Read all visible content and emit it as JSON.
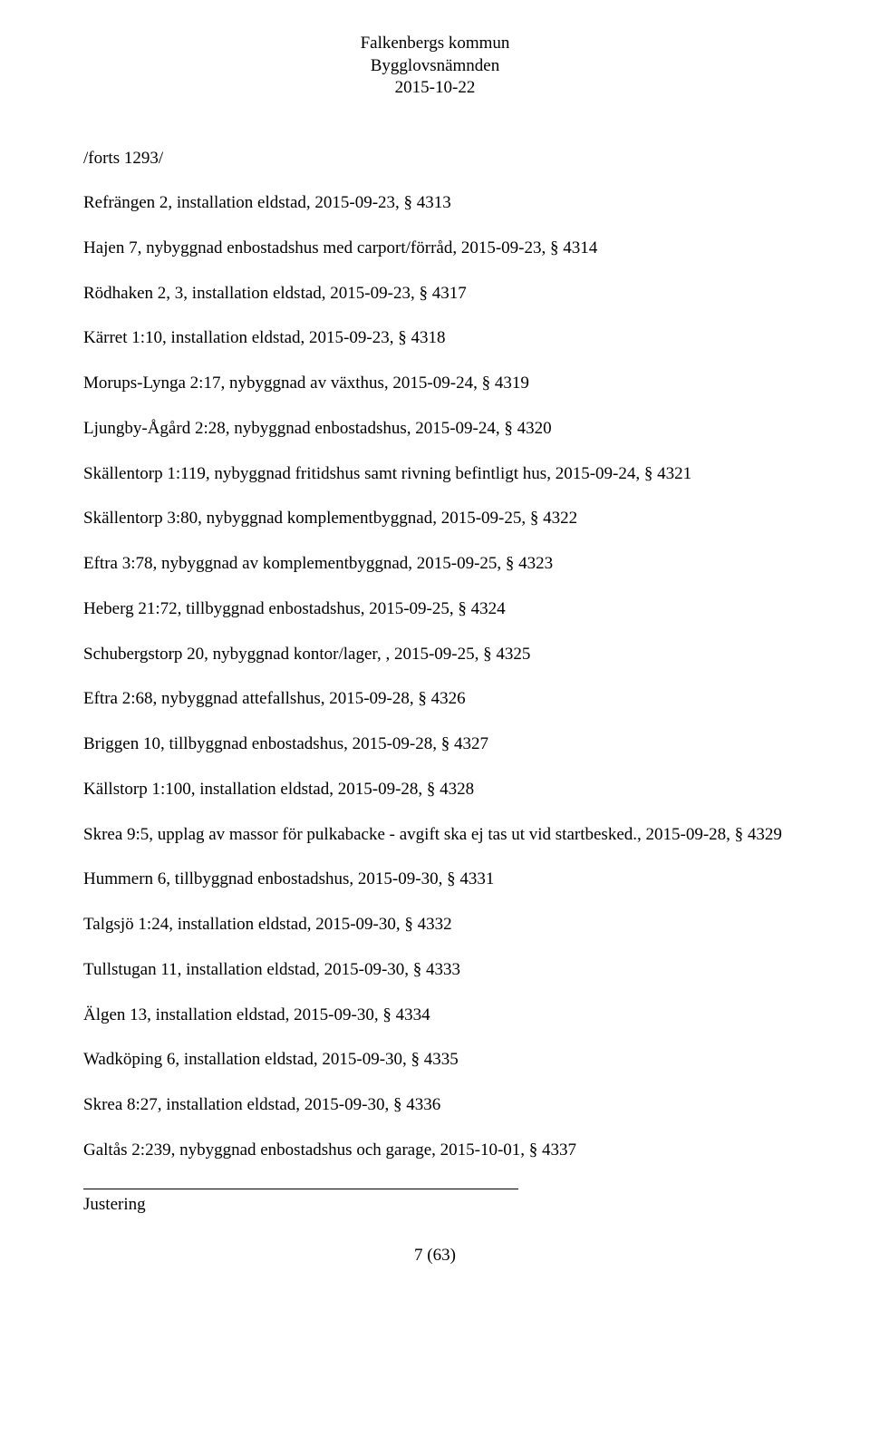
{
  "header": {
    "line1": "Falkenbergs kommun",
    "line2": "Bygglovsnämnden",
    "line3": "2015-10-22"
  },
  "section_head": "/forts 1293/",
  "entries": [
    "Refrängen 2, installation eldstad, 2015-09-23, § 4313",
    "Hajen 7, nybyggnad enbostadshus med carport/förråd, 2015-09-23, § 4314",
    "Rödhaken 2, 3, installation eldstad, 2015-09-23, § 4317",
    "Kärret 1:10, installation eldstad, 2015-09-23, § 4318",
    "Morups-Lynga 2:17, nybyggnad av växthus, 2015-09-24, § 4319",
    "Ljungby-Ågård 2:28, nybyggnad enbostadshus, 2015-09-24, § 4320",
    "Skällentorp 1:119, nybyggnad fritidshus samt rivning befintligt hus, 2015-09-24, § 4321",
    "Skällentorp 3:80, nybyggnad komplementbyggnad, 2015-09-25, § 4322",
    "Eftra 3:78, nybyggnad av komplementbyggnad, 2015-09-25, § 4323",
    "Heberg 21:72, tillbyggnad enbostadshus, 2015-09-25, § 4324",
    "Schubergstorp 20, nybyggnad kontor/lager, , 2015-09-25, § 4325",
    "Eftra 2:68, nybyggnad attefallshus, 2015-09-28, § 4326",
    "Briggen 10, tillbyggnad enbostadshus, 2015-09-28, § 4327",
    "Källstorp 1:100, installation eldstad, 2015-09-28, § 4328",
    "Skrea 9:5, upplag av massor för pulkabacke - avgift ska ej tas ut vid startbesked., 2015-09-28, § 4329",
    "Hummern 6, tillbyggnad enbostadshus, 2015-09-30, § 4331",
    "Talgsjö 1:24, installation eldstad, 2015-09-30, § 4332",
    "Tullstugan 11, installation eldstad, 2015-09-30, § 4333",
    "Älgen 13, installation eldstad, 2015-09-30, § 4334",
    "Wadköping 6, installation eldstad, 2015-09-30, § 4335",
    "Skrea 8:27, installation eldstad, 2015-09-30, § 4336",
    "Galtås 2:239, nybyggnad enbostadshus och garage, 2015-10-01, § 4337"
  ],
  "footer": {
    "label": "Justering",
    "page_num": "7 (63)"
  }
}
